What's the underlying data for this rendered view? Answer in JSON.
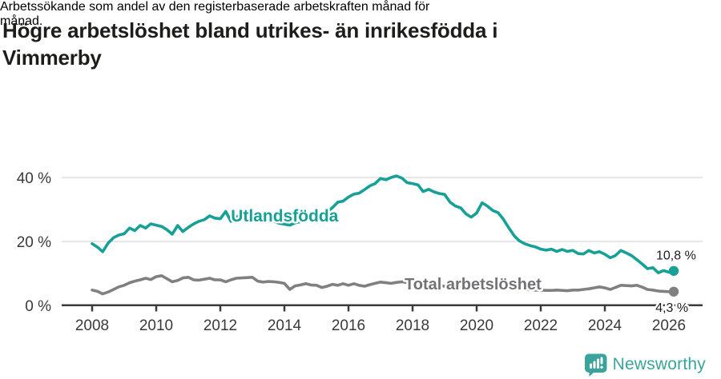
{
  "header": {
    "title_lines": [
      "Högre arbetslöshet bland utrikes- än inrikesfödda i",
      "Vimmerby"
    ],
    "subtitle_lines": [
      "Arbetssökande som andel av den registerbaserade arbetskraften månad för",
      "månad."
    ]
  },
  "footer": {
    "brand": "Newsworthy",
    "logo_icon": "speech-bubble-bar-chart"
  },
  "colors": {
    "accent_teal": "#16a096",
    "series_gray": "#7f8082",
    "label_gray": "#717377",
    "axis": "#3a3a3a",
    "grid": "#d8d8d8",
    "text": "#1d1d1b",
    "logo_teal": "#3aa49c"
  },
  "chart_data": {
    "type": "line",
    "title": "Högre arbetslöshet bland utrikes- än inrikesfödda i Vimmerby",
    "subtitle": "Arbetssökande som andel av den registerbaserade arbetskraften månad för månad.",
    "unit": "%",
    "xlim": [
      2007.05,
      2027.05
    ],
    "ylim": [
      0,
      42.5
    ],
    "grid": "horizontal-only",
    "legend_position": "inline-labels",
    "y_ticks": [
      {
        "value": 0,
        "label": "0 %"
      },
      {
        "value": 20,
        "label": "20 %"
      },
      {
        "value": 40,
        "label": "40 %"
      }
    ],
    "x_ticks": [
      {
        "value": 2008,
        "label": "2008"
      },
      {
        "value": 2010,
        "label": "2010"
      },
      {
        "value": 2012,
        "label": "2012"
      },
      {
        "value": 2014,
        "label": "2014"
      },
      {
        "value": 2016,
        "label": "2016"
      },
      {
        "value": 2018,
        "label": "2018"
      },
      {
        "value": 2020,
        "label": "2020"
      },
      {
        "value": 2022,
        "label": "2022"
      },
      {
        "value": 2024,
        "label": "2024"
      },
      {
        "value": 2026,
        "label": "2026"
      }
    ],
    "x": [
      2008,
      2008.17,
      2008.33,
      2008.5,
      2008.67,
      2008.83,
      2009,
      2009.17,
      2009.33,
      2009.5,
      2009.67,
      2009.83,
      2010,
      2010.17,
      2010.33,
      2010.5,
      2010.67,
      2010.83,
      2011,
      2011.17,
      2011.33,
      2011.5,
      2011.67,
      2011.83,
      2012,
      2012.17,
      2012.33,
      2012.5,
      2012.67,
      2012.83,
      2013,
      2013.17,
      2013.33,
      2013.5,
      2013.67,
      2013.83,
      2014,
      2014.17,
      2014.33,
      2014.5,
      2014.67,
      2014.83,
      2015,
      2015.17,
      2015.33,
      2015.5,
      2015.67,
      2015.83,
      2016,
      2016.17,
      2016.33,
      2016.5,
      2016.67,
      2016.83,
      2017,
      2017.17,
      2017.33,
      2017.5,
      2017.67,
      2017.83,
      2018,
      2018.17,
      2018.33,
      2018.5,
      2018.67,
      2018.83,
      2019,
      2019.17,
      2019.33,
      2019.5,
      2019.67,
      2019.83,
      2020,
      2020.17,
      2020.33,
      2020.5,
      2020.67,
      2020.83,
      2021,
      2021.17,
      2021.33,
      2021.5,
      2021.67,
      2021.83,
      2022,
      2022.17,
      2022.33,
      2022.5,
      2022.67,
      2022.83,
      2023,
      2023.17,
      2023.33,
      2023.5,
      2023.67,
      2023.83,
      2024,
      2024.17,
      2024.33,
      2024.5,
      2024.67,
      2024.83,
      2025,
      2025.17,
      2025.33,
      2025.5,
      2025.67,
      2025.83,
      2026,
      2026.15
    ],
    "series": [
      {
        "name": "Utlandsfödda",
        "color": "#16a096",
        "end_label": "10,8 %",
        "final_value": 10.8,
        "values": [
          19.3,
          18.2,
          16.8,
          19.5,
          21.2,
          22.0,
          22.4,
          24.2,
          23.4,
          25.0,
          24.2,
          25.5,
          25.1,
          24.7,
          23.7,
          22.3,
          25.0,
          23.1,
          24.4,
          25.5,
          26.3,
          26.8,
          28.0,
          27.3,
          27.1,
          29.4,
          26.3,
          27.6,
          28.6,
          28.2,
          28.0,
          26.8,
          26.2,
          27.0,
          26.3,
          25.7,
          25.4,
          25.1,
          25.8,
          26.2,
          26.6,
          26.8,
          27.1,
          27.9,
          29.2,
          30.6,
          32.3,
          32.6,
          33.9,
          34.8,
          35.1,
          36.2,
          37.4,
          38.1,
          39.7,
          39.3,
          40.0,
          40.5,
          39.8,
          38.4,
          38.1,
          37.7,
          35.6,
          36.3,
          35.5,
          35.0,
          34.7,
          32.3,
          31.1,
          30.5,
          28.6,
          27.6,
          28.9,
          32.1,
          31.1,
          29.7,
          29.0,
          27.0,
          24.3,
          21.8,
          20.2,
          19.3,
          18.7,
          18.3,
          17.6,
          17.3,
          17.6,
          16.9,
          17.5,
          16.9,
          17.2,
          16.2,
          16.1,
          17.2,
          16.4,
          16.8,
          16.0,
          14.9,
          15.6,
          17.2,
          16.4,
          15.6,
          14.3,
          12.9,
          11.5,
          11.8,
          10.2,
          10.9,
          10.4,
          10.8
        ]
      },
      {
        "name": "Total arbetslöshet",
        "color": "#7f8082",
        "end_label": "4,3 %",
        "final_value": 4.3,
        "values": [
          4.8,
          4.4,
          3.6,
          4.2,
          5.0,
          5.8,
          6.3,
          7.1,
          7.6,
          8.0,
          8.5,
          8.1,
          9.0,
          9.3,
          8.4,
          7.4,
          7.8,
          8.6,
          8.8,
          8.0,
          7.9,
          8.2,
          8.5,
          8.0,
          8.0,
          7.4,
          8.0,
          8.5,
          8.6,
          8.7,
          8.8,
          7.6,
          7.3,
          7.5,
          7.4,
          7.2,
          6.9,
          5.0,
          6.1,
          6.4,
          6.8,
          6.4,
          6.3,
          5.6,
          6.0,
          6.6,
          6.3,
          6.8,
          6.3,
          6.8,
          6.3,
          6.0,
          6.5,
          6.9,
          7.3,
          7.1,
          6.9,
          7.2,
          7.4,
          7.1,
          7.0,
          6.8,
          6.6,
          6.4,
          6.4,
          6.2,
          6.0,
          5.8,
          5.7,
          5.8,
          5.6,
          5.4,
          5.6,
          6.1,
          6.3,
          6.1,
          5.9,
          5.6,
          5.4,
          5.2,
          5.1,
          5.0,
          4.9,
          4.8,
          4.8,
          4.7,
          4.7,
          4.8,
          4.7,
          4.6,
          4.8,
          4.8,
          5.0,
          5.2,
          5.5,
          5.8,
          5.5,
          5.0,
          5.6,
          6.3,
          6.2,
          6.1,
          6.3,
          5.7,
          5.0,
          4.8,
          4.5,
          4.4,
          4.3,
          4.3
        ]
      }
    ],
    "annotations": [
      {
        "name": "series-label-utlandsfodda",
        "text": "Utlandsfödda",
        "x": 2012.33,
        "y": 26.25,
        "color": "#16a096",
        "size": 21,
        "weight": "bold"
      },
      {
        "name": "series-label-total-arbetsloshet",
        "text": "Total arbetslöshet",
        "x": 2017.75,
        "y": 5.0,
        "color": "#717377",
        "size": 20,
        "weight": "bold"
      },
      {
        "name": "end-value-utlandsfodda",
        "text": "10,8 %",
        "x": 2025.6,
        "y": 14.4,
        "color": "#1d1d1b",
        "size": 16,
        "weight": "normal"
      },
      {
        "name": "end-value-total-arbetsloshet",
        "text": "4,3 %",
        "x": 2025.58,
        "y": -2.0,
        "color": "#1d1d1b",
        "size": 16,
        "weight": "normal"
      }
    ]
  }
}
